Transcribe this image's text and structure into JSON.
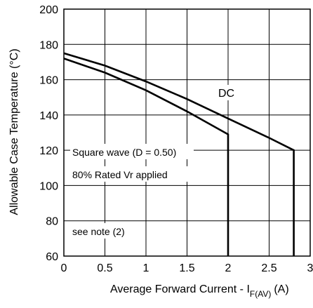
{
  "chart_data": {
    "type": "line",
    "xlabel": "Average Forward Current - I",
    "xlabel_sub": "F(AV)",
    "xlabel_unit": "(A)",
    "ylabel": "Allowable Case Temperature  (°C)",
    "xlim": [
      0,
      3
    ],
    "ylim": [
      60,
      200
    ],
    "x_ticks": [
      "0",
      "0.5",
      "1",
      "1.5",
      "2",
      "2.5",
      "3"
    ],
    "y_ticks": [
      "60",
      "80",
      "100",
      "120",
      "140",
      "160",
      "180",
      "200"
    ],
    "grid": true,
    "annotations": {
      "dc": "DC",
      "square_wave": "Square wave (D = 0.50)",
      "rated": "80% Rated Vr applied",
      "note": "see note (2)"
    },
    "series": [
      {
        "name": "DC",
        "x": [
          0,
          0.5,
          1.0,
          1.5,
          2.0,
          2.5,
          2.8,
          2.8
        ],
        "y": [
          175,
          168,
          159,
          149,
          138,
          127,
          120,
          60
        ]
      },
      {
        "name": "Square wave (D = 0.50)",
        "x": [
          0,
          0.5,
          1.0,
          1.5,
          2.0,
          2.0
        ],
        "y": [
          172,
          164,
          154,
          142,
          129,
          60
        ]
      }
    ]
  }
}
